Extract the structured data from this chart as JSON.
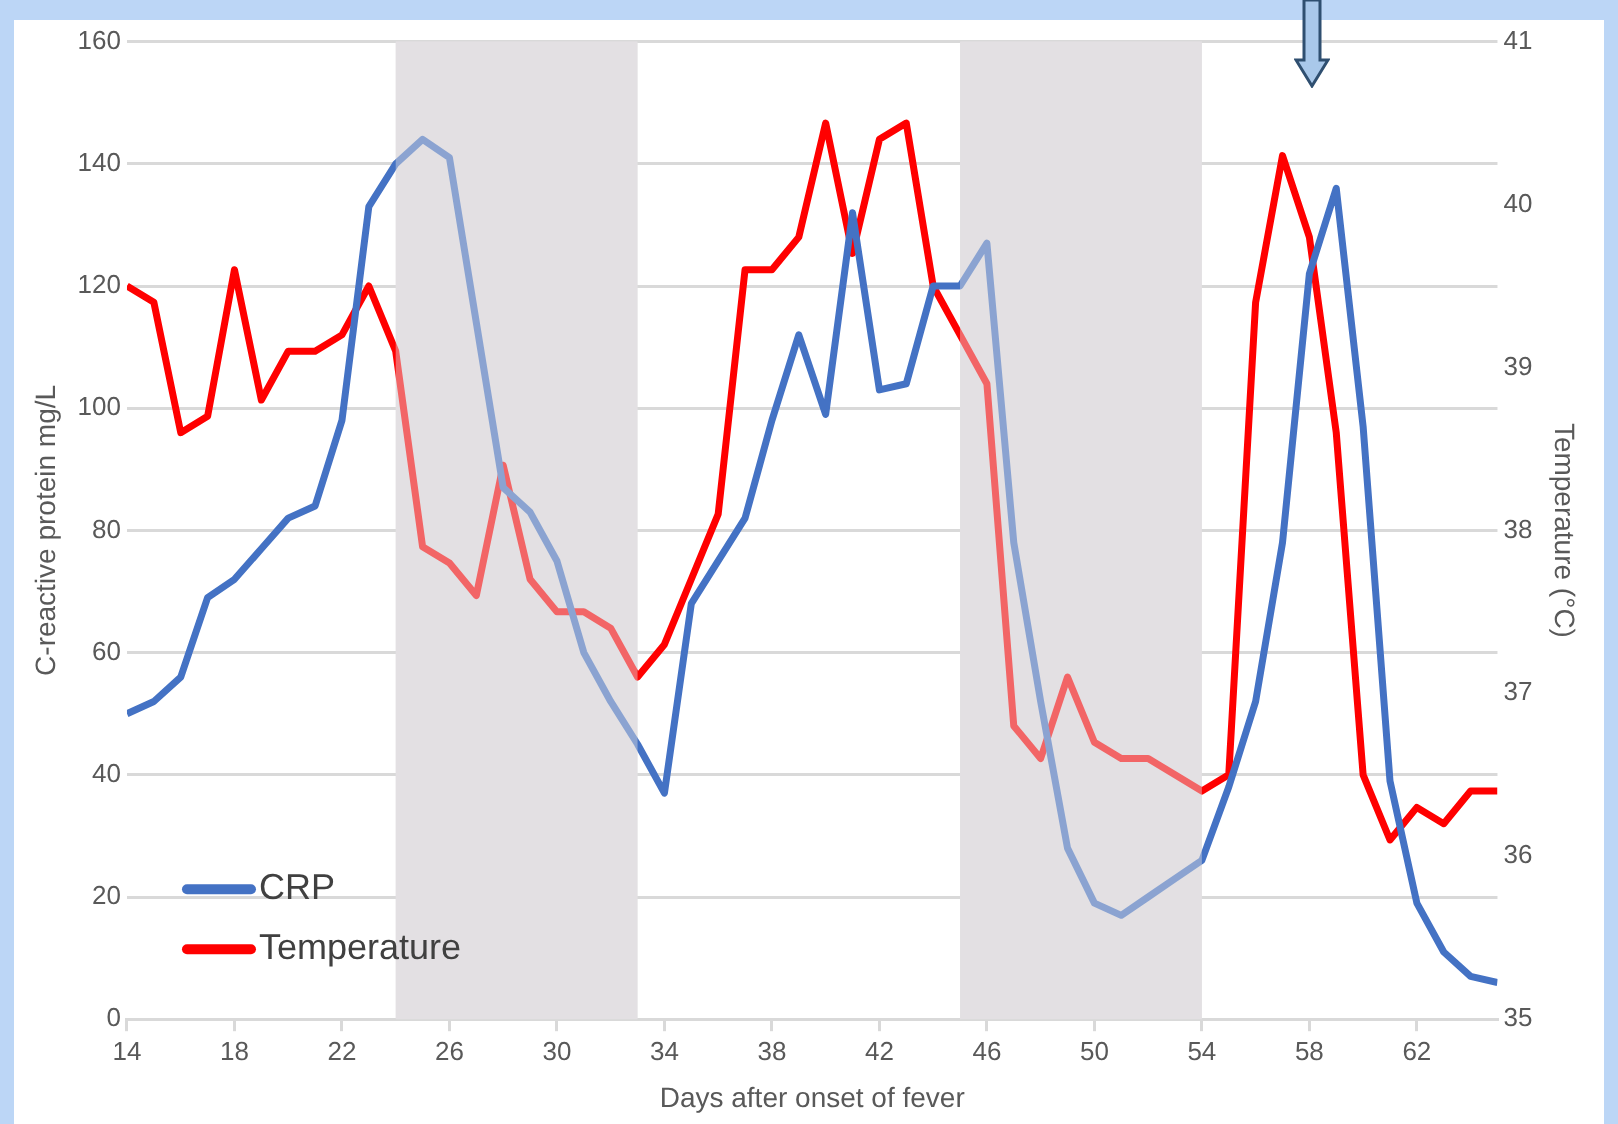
{
  "chart_data": {
    "type": "line",
    "xlabel": "Days after onset of fever",
    "ylabel": "C-reactive protein mg/L",
    "y2label": "Temperature (°C)",
    "x": [
      14,
      15,
      16,
      17,
      18,
      19,
      20,
      21,
      22,
      23,
      24,
      25,
      26,
      27,
      28,
      29,
      30,
      31,
      32,
      33,
      34,
      35,
      36,
      37,
      38,
      39,
      40,
      41,
      42,
      43,
      44,
      45,
      46,
      47,
      48,
      49,
      50,
      51,
      52,
      53,
      54,
      55,
      56,
      57,
      58,
      59,
      60,
      61,
      62,
      63,
      64,
      65
    ],
    "series": [
      {
        "name": "CRP",
        "color": "#4472c4",
        "values": [
          50,
          52,
          56,
          69,
          72,
          77,
          82,
          84,
          98,
          133,
          140,
          144,
          141,
          114,
          87,
          83,
          75,
          60,
          52,
          45,
          37,
          68,
          75,
          82,
          98,
          112,
          99,
          132,
          103,
          104,
          120,
          120,
          127,
          78,
          52,
          28,
          19,
          17,
          20,
          23,
          26,
          38,
          52,
          78,
          122,
          136,
          97,
          39,
          19,
          11,
          7,
          6
        ]
      },
      {
        "name": "Temperature",
        "color": "#ff0000",
        "axis": "y2",
        "values": [
          39.5,
          39.4,
          38.6,
          38.7,
          39.6,
          38.8,
          39.1,
          39.1,
          39.2,
          39.5,
          39.1,
          37.9,
          37.8,
          37.6,
          38.4,
          37.7,
          37.5,
          37.5,
          37.4,
          37.1,
          37.3,
          37.7,
          38.1,
          39.6,
          39.6,
          39.8,
          40.5,
          39.7,
          40.4,
          40.5,
          39.5,
          39.2,
          38.9,
          36.8,
          36.6,
          37.1,
          36.7,
          36.6,
          36.6,
          36.5,
          36.4,
          36.5,
          39.4,
          40.3,
          39.8,
          38.6,
          36.5,
          36.1,
          36.3,
          36.2,
          36.4,
          36.4
        ]
      }
    ],
    "xlim": [
      14,
      65
    ],
    "xticks": [
      14,
      18,
      22,
      26,
      30,
      34,
      38,
      42,
      46,
      50,
      54,
      58,
      62
    ],
    "ylim": [
      0,
      160
    ],
    "yticks": [
      0,
      20,
      40,
      60,
      80,
      100,
      120,
      140,
      160
    ],
    "y2lim": [
      35,
      41
    ],
    "y2ticks": [
      35,
      36,
      37,
      38,
      39,
      40,
      41
    ],
    "bands": [
      {
        "axis": "x",
        "from": 24,
        "to": 33,
        "color": "#e3e1e3"
      },
      {
        "axis": "x",
        "from": 45,
        "to": 54,
        "color": "#e3e1e3"
      }
    ],
    "grid": "y",
    "legend": "bottom left",
    "marker": "none",
    "line_style": "solid"
  }
}
